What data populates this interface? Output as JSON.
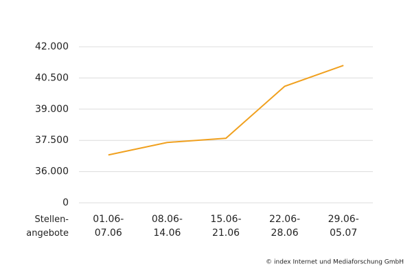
{
  "chart_data": {
    "type": "line",
    "categories": [
      "01.06-07.06",
      "08.06-14.06",
      "15.06-21.06",
      "22.06-28.06",
      "29.06-05.07"
    ],
    "series": [
      {
        "name": "Stellen-angebote",
        "color": "#f0a01e",
        "values": [
          36800,
          37400,
          37600,
          40100,
          41100
        ]
      }
    ],
    "ylim": [
      34500,
      42000
    ],
    "yticks": [
      0,
      {
        "value": 36000,
        "label": "36.000"
      },
      {
        "value": 37500,
        "label": "37.500"
      },
      {
        "value": 39000,
        "label": "39.000"
      },
      {
        "value": 40500,
        "label": "40.500"
      },
      {
        "value": 42000,
        "label": "42.000"
      }
    ],
    "y_axis_break": true,
    "grid": true,
    "source": "© index Internet und Mediaforschung GmbH"
  }
}
